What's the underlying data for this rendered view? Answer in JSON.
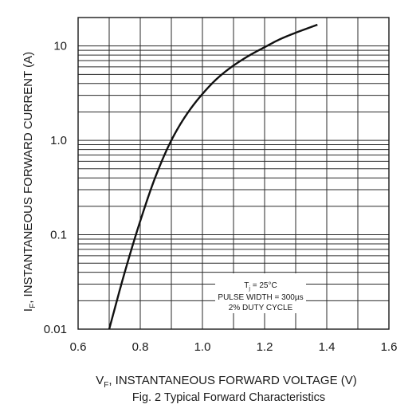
{
  "chart_data": {
    "type": "line",
    "title": "",
    "caption": "Fig. 2 Typical Forward Characteristics",
    "xlabel": {
      "prefix": "V",
      "subscript": "F",
      "suffix": ", INSTANTANEOUS FORWARD VOLTAGE (V)"
    },
    "ylabel": {
      "prefix": "I",
      "subscript": "F",
      "suffix": ", INSTANTANEOUS FORWARD CURRENT (A)"
    },
    "xlim": [
      0.6,
      1.6
    ],
    "ylim": [
      0.01,
      20
    ],
    "yscale": "log",
    "grid": true,
    "x_ticks": [
      0.6,
      0.8,
      1.0,
      1.2,
      1.4,
      1.6
    ],
    "x_tick_labels": [
      "0.6",
      "0.8",
      "1.0",
      "1.2",
      "1.4",
      "1.6"
    ],
    "y_ticks": [
      0.01,
      0.1,
      1.0,
      10
    ],
    "y_tick_labels": [
      "0.01",
      "0.1",
      "1.0",
      "10"
    ],
    "annotation": {
      "line1_prefix": "T",
      "line1_subscript": "j",
      "line1_suffix": " = 25°C",
      "line2": "PULSE WIDTH = 300µs",
      "line3": "2% DUTY CYCLE"
    },
    "series": [
      {
        "x": [
          0.7,
          0.75,
          0.8,
          0.85,
          0.9,
          0.95,
          1.0,
          1.05,
          1.1,
          1.15,
          1.2,
          1.25,
          1.3,
          1.37
        ],
        "y": [
          0.01,
          0.04,
          0.14,
          0.42,
          1.0,
          1.9,
          3.1,
          4.6,
          6.2,
          7.9,
          9.7,
          11.8,
          13.8,
          16.8
        ]
      }
    ]
  }
}
